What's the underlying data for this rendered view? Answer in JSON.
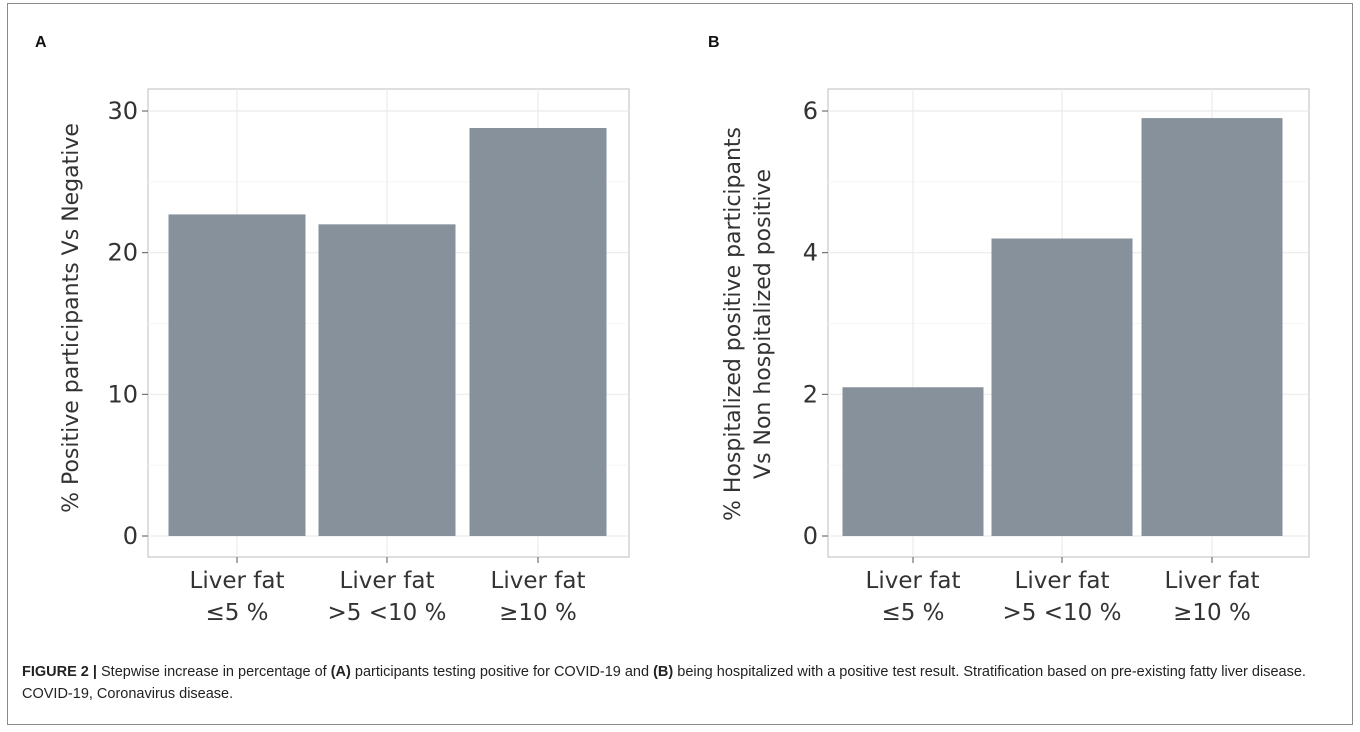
{
  "panels": {
    "a_label": "A",
    "b_label": "B"
  },
  "chart_data": [
    {
      "type": "bar",
      "panel": "A",
      "categories": [
        "Liver fat\n≤5 %",
        "Liver fat\n>5 <10 %",
        "Liver fat\n≥10 %"
      ],
      "values": [
        22.7,
        22.0,
        28.8
      ],
      "ylabel": "% Positive participants Vs Negative",
      "ylim": [
        0,
        30
      ],
      "yticks": [
        0,
        10,
        20,
        30
      ],
      "grid": true,
      "bar_color": "#87919c"
    },
    {
      "type": "bar",
      "panel": "B",
      "categories": [
        "Liver fat\n≤5 %",
        "Liver fat\n>5 <10 %",
        "Liver fat\n≥10 %"
      ],
      "values": [
        2.1,
        4.2,
        5.9
      ],
      "ylabel": "% Hospitalized positive  participants\nVs Non hospitalized positive",
      "ylim": [
        0,
        6
      ],
      "yticks": [
        0,
        2,
        4,
        6
      ],
      "grid": true,
      "bar_color": "#87919c"
    }
  ],
  "caption": {
    "figure_label": "FIGURE 2 |",
    "part1": " Stepwise increase in percentage of ",
    "ref_a": "(A)",
    "part2": " participants testing positive for COVID-19 and ",
    "ref_b": "(B)",
    "part3": " being hospitalized with a positive test result. Stratification based on pre-existing fatty liver disease. COVID-19, Coronavirus disease."
  }
}
